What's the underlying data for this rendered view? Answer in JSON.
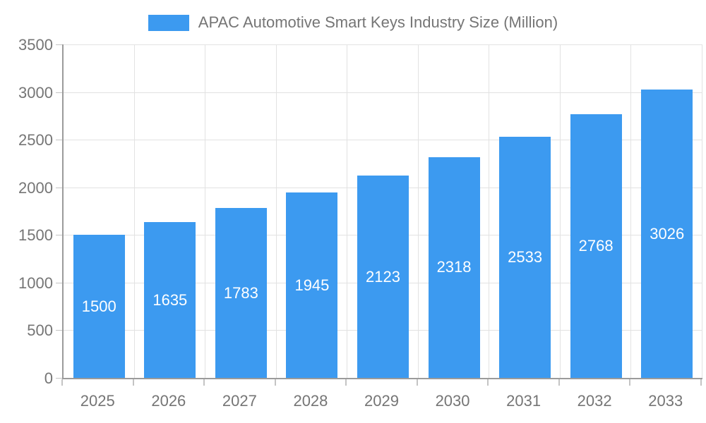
{
  "legend": {
    "label": "APAC Automotive Smart Keys Industry Size (Million)"
  },
  "chart_data": {
    "type": "bar",
    "title": "APAC Automotive Smart Keys Industry Size (Million)",
    "categories": [
      "2025",
      "2026",
      "2027",
      "2028",
      "2029",
      "2030",
      "2031",
      "2032",
      "2033"
    ],
    "values": [
      1500,
      1635,
      1783,
      1945,
      2123,
      2318,
      2533,
      2768,
      3026
    ],
    "xlabel": "",
    "ylabel": "",
    "ylim": [
      0,
      3500
    ],
    "yticks": [
      0,
      500,
      1000,
      1500,
      2000,
      2500,
      3000,
      3500
    ],
    "grid": true,
    "legend_position": "top-center",
    "bar_label_position": "inside-center",
    "colors": {
      "bar": "#3C9AF0",
      "grid": "#E2E2E2",
      "axis": "#9B9B9B",
      "tick": "#C4C4C4",
      "text": "#757575",
      "bar_label": "#FFFFFF",
      "background": "#FFFFFF"
    }
  }
}
